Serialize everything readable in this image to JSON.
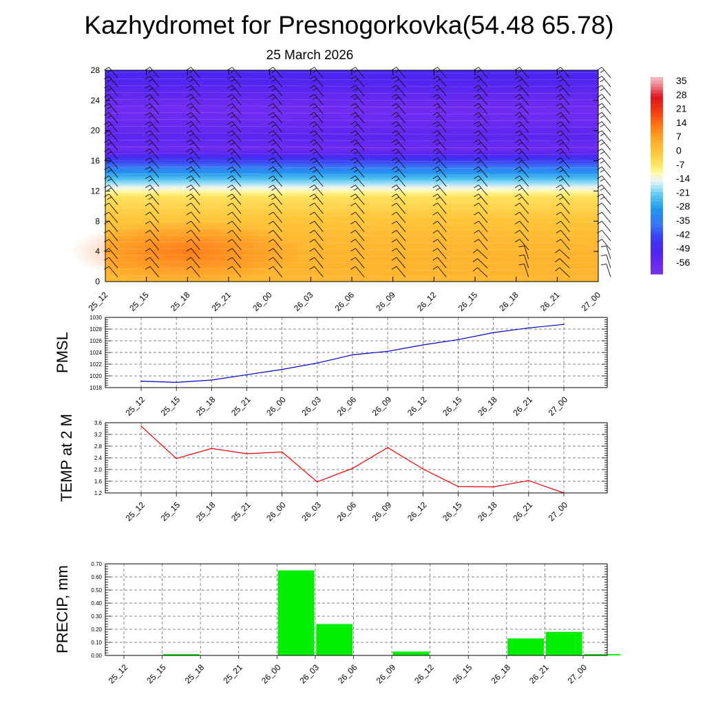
{
  "header": {
    "title": "Kazhydromet for Presnogorkovka(54.48 65.78)",
    "date": "25 March 2026"
  },
  "colors": {
    "pmsl_line": "#0000cc",
    "temp_line": "#ee0000",
    "precip_bar": "#00ee00"
  },
  "chart_data": [
    {
      "type": "heatmap",
      "title": "",
      "x_ticks": [
        "25_12",
        "25_15",
        "25_18",
        "25_21",
        "26_00",
        "26_03",
        "26_06",
        "26_09",
        "26_12",
        "26_15",
        "26_18",
        "26_21",
        "27_00"
      ],
      "y_ticks": [
        0,
        4,
        8,
        12,
        16,
        20,
        24,
        28
      ],
      "ylim": [
        0,
        28
      ],
      "colorbar_labels": [
        "35",
        "28",
        "21",
        "14",
        "7",
        "0",
        "-7",
        "-14",
        "-21",
        "-28",
        "-35",
        "-42",
        "-49",
        "-56"
      ],
      "colorbar_range": [
        -60,
        38
      ],
      "temperature_profile": [
        {
          "level": 0,
          "value": 4
        },
        {
          "level": 3,
          "value": 5
        },
        {
          "level": 5,
          "value": 4
        },
        {
          "level": 8,
          "value": 1
        },
        {
          "level": 11,
          "value": -4
        },
        {
          "level": 12,
          "value": -10
        },
        {
          "level": 14,
          "value": -25
        },
        {
          "level": 16,
          "value": -42
        },
        {
          "level": 17.5,
          "value": -56
        },
        {
          "level": 19,
          "value": -52
        },
        {
          "level": 21,
          "value": -55
        },
        {
          "level": 23,
          "value": -57
        },
        {
          "level": 25,
          "value": -52
        },
        {
          "level": 28,
          "value": -48
        }
      ],
      "wind_barbs": true,
      "grid": false
    },
    {
      "type": "line",
      "ylabel": "PMSL",
      "x": [
        "25_12",
        "25_15",
        "25_18",
        "25_21",
        "26_00",
        "26_03",
        "26_06",
        "26_09",
        "26_12",
        "26_15",
        "26_18",
        "26_21",
        "27_00"
      ],
      "values": [
        1019.1,
        1018.9,
        1019.3,
        1020.2,
        1021.1,
        1022.2,
        1023.6,
        1024.2,
        1025.3,
        1026.2,
        1027.4,
        1028.2,
        1028.8
      ],
      "y_ticks": [
        1018,
        1020,
        1022,
        1024,
        1026,
        1028,
        1030
      ],
      "ylim": [
        1018,
        1030
      ],
      "grid": true
    },
    {
      "type": "line",
      "ylabel": "TEMP at 2 M",
      "x": [
        "25_12",
        "25_15",
        "25_18",
        "25_21",
        "26_00",
        "26_03",
        "26_06",
        "26_09",
        "26_12",
        "26_15",
        "26_18",
        "26_21",
        "27_00"
      ],
      "values": [
        3.48,
        2.38,
        2.72,
        2.54,
        2.6,
        1.58,
        2.04,
        2.75,
        2.02,
        1.42,
        1.41,
        1.62,
        1.2
      ],
      "y_ticks": [
        "1.2",
        "1.6",
        "2.0",
        "2.4",
        "2.8",
        "3.2",
        "3.6"
      ],
      "ylim": [
        1.2,
        3.6
      ],
      "grid": true
    },
    {
      "type": "bar",
      "ylabel": "PRECIP, mm",
      "categories": [
        "25_12",
        "25_15",
        "25_18",
        "25_21",
        "26_00",
        "26_03",
        "26_06",
        "26_09",
        "26_12",
        "26_15",
        "26_18",
        "26_21",
        "27_00"
      ],
      "values": [
        0,
        0.01,
        0,
        0,
        0.65,
        0.24,
        0,
        0.03,
        0,
        0,
        0.13,
        0.18,
        0.01
      ],
      "y_ticks": [
        "0.00",
        "0.10",
        "0.20",
        "0.30",
        "0.40",
        "0.50",
        "0.60",
        "0.70"
      ],
      "ylim": [
        0,
        0.7
      ],
      "grid": true
    }
  ]
}
